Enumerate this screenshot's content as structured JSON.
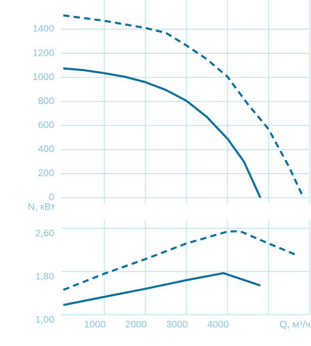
{
  "chart_data": [
    {
      "type": "line",
      "ylim": [
        0,
        1600
      ],
      "yticks": [
        0,
        200,
        400,
        600,
        800,
        1000,
        1200,
        1400
      ],
      "grid": true,
      "series": [
        {
          "color": "#0b6f99",
          "dash": false,
          "x": [
            0,
            500,
            1000,
            1500,
            2000,
            2500,
            3000,
            3500,
            4000,
            4400,
            4800
          ],
          "values": [
            1075,
            1060,
            1035,
            1005,
            960,
            895,
            805,
            670,
            490,
            300,
            0
          ]
        },
        {
          "color": "#0b6f99",
          "dash": true,
          "x": [
            0,
            1000,
            2000,
            2500,
            3000,
            3500,
            4000,
            4500,
            5000,
            5500,
            5850
          ],
          "values": [
            1515,
            1470,
            1410,
            1370,
            1265,
            1150,
            1005,
            775,
            570,
            255,
            0
          ]
        }
      ]
    },
    {
      "type": "line",
      "ylabel": "N, кВт",
      "xlabel": "Q, м³/ч",
      "xlim": [
        0,
        6000
      ],
      "xticks": [
        1000,
        2000,
        3000,
        4000,
        {
          "value": 5000,
          "label": null
        }
      ],
      "ylim": [
        1.0,
        2.76
      ],
      "yticks": [
        {
          "value": 1.0,
          "label": "1,00"
        },
        {
          "value": 1.8,
          "label": "1,80"
        },
        {
          "value": 2.6,
          "label": "2,60"
        }
      ],
      "grid": true,
      "series": [
        {
          "color": "#0b6f99",
          "dash": false,
          "x": [
            0,
            1000,
            2000,
            3000,
            3900,
            4800
          ],
          "values": [
            1.18,
            1.33,
            1.48,
            1.64,
            1.77,
            1.54
          ]
        },
        {
          "color": "#0b6f99",
          "dash": true,
          "x": [
            0,
            1000,
            2000,
            3000,
            4000,
            4300,
            5000,
            5700
          ],
          "values": [
            1.46,
            1.76,
            2.03,
            2.32,
            2.54,
            2.55,
            2.32,
            2.1
          ]
        }
      ]
    }
  ]
}
